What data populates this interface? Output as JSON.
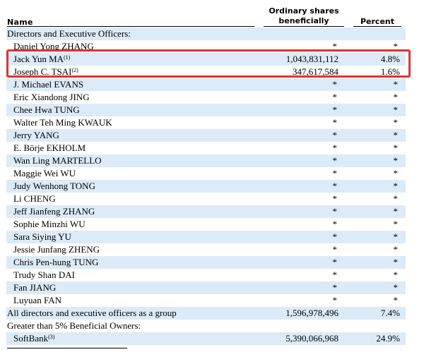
{
  "header": {
    "name": "Name",
    "shares_line1": "Ordinary shares",
    "shares_line2": "beneficially owned",
    "percent": "Percent"
  },
  "rows": [
    {
      "name": "Directors and Executive Officers:",
      "shares": "",
      "pct": "",
      "indent": 0,
      "kind": "section"
    },
    {
      "name": "Daniel Yong ZHANG",
      "shares": "*",
      "pct": "*",
      "indent": 1
    },
    {
      "name": "Jack Yun MA",
      "note": "(1)",
      "shares": "1,043,831,112",
      "pct": "4.8%",
      "indent": 1
    },
    {
      "name": "Joseph C. TSAI",
      "note": "(2)",
      "shares": "347,617,584",
      "pct": "1.6%",
      "indent": 1
    },
    {
      "name": "J. Michael EVANS",
      "shares": "*",
      "pct": "*",
      "indent": 1
    },
    {
      "name": "Eric Xiandong JING",
      "shares": "*",
      "pct": "*",
      "indent": 1
    },
    {
      "name": "Chee Hwa TUNG",
      "shares": "*",
      "pct": "*",
      "indent": 1
    },
    {
      "name": "Walter Teh Ming KWAUK",
      "shares": "*",
      "pct": "*",
      "indent": 1
    },
    {
      "name": "Jerry YANG",
      "shares": "*",
      "pct": "*",
      "indent": 1
    },
    {
      "name": "E. Börje EKHOLM",
      "shares": "*",
      "pct": "*",
      "indent": 1
    },
    {
      "name": "Wan Ling MARTELLO",
      "shares": "*",
      "pct": "*",
      "indent": 1
    },
    {
      "name": "Maggie Wei WU",
      "shares": "*",
      "pct": "*",
      "indent": 1
    },
    {
      "name": "Judy Wenhong TONG",
      "shares": "*",
      "pct": "*",
      "indent": 1
    },
    {
      "name": "Li CHENG",
      "shares": "*",
      "pct": "*",
      "indent": 1
    },
    {
      "name": "Jeff Jianfeng ZHANG",
      "shares": "*",
      "pct": "*",
      "indent": 1
    },
    {
      "name": "Sophie Minzhi WU",
      "shares": "*",
      "pct": "*",
      "indent": 1
    },
    {
      "name": "Sara Siying YU",
      "shares": "*",
      "pct": "*",
      "indent": 1
    },
    {
      "name": "Jessie Junfang ZHENG",
      "shares": "*",
      "pct": "*",
      "indent": 1
    },
    {
      "name": "Chris Pen-hung TUNG",
      "shares": "*",
      "pct": "*",
      "indent": 1
    },
    {
      "name": "Trudy Shan DAI",
      "shares": "*",
      "pct": "*",
      "indent": 1
    },
    {
      "name": "Fan JIANG",
      "shares": "*",
      "pct": "*",
      "indent": 1
    },
    {
      "name": "Luyuan FAN",
      "shares": "*",
      "pct": "*",
      "indent": 1
    },
    {
      "name": "All directors and executive officers as a group",
      "shares": "1,596,978,496",
      "pct": "7.4%",
      "indent": 0
    },
    {
      "name": "Greater than 5% Beneficial Owners:",
      "shares": "",
      "pct": "",
      "indent": 0,
      "kind": "section"
    },
    {
      "name": "SoftBank",
      "note": "(3)",
      "shares": "5,390,066,968",
      "pct": "24.9%",
      "indent": 1
    }
  ],
  "colors": {
    "band": "#dcebf7",
    "highlight": "#e53030"
  }
}
